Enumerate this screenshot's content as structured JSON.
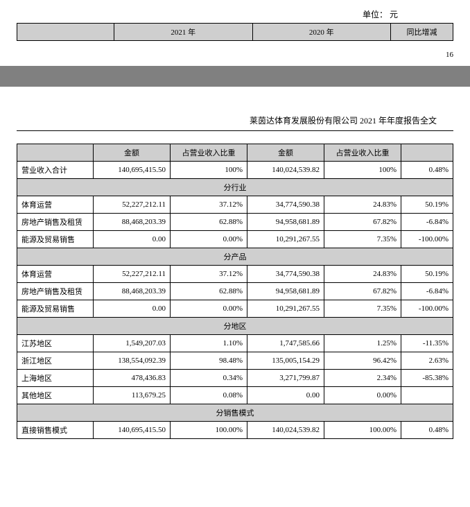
{
  "unit_label": "单位： 元",
  "top_table": {
    "headers": [
      "",
      "2021 年",
      "2020 年",
      "同比增减"
    ]
  },
  "page_number_top": "16",
  "doc_header": "莱茵达体育发展股份有限公司 2021 年年度报告全文",
  "main_table": {
    "headers": [
      "",
      "金额",
      "占营业收入比重",
      "金额",
      "占营业收入比重",
      ""
    ],
    "total_row": {
      "label": "营业收入合计",
      "amt1": "140,695,415.50",
      "pct1": "100%",
      "amt2": "140,024,539.82",
      "pct2": "100%",
      "chg": "0.48%"
    },
    "sections": [
      {
        "title": "分行业",
        "rows": [
          {
            "label": "体育运营",
            "amt1": "52,227,212.11",
            "pct1": "37.12%",
            "amt2": "34,774,590.38",
            "pct2": "24.83%",
            "chg": "50.19%"
          },
          {
            "label": "房地产销售及租赁",
            "amt1": "88,468,203.39",
            "pct1": "62.88%",
            "amt2": "94,958,681.89",
            "pct2": "67.82%",
            "chg": "-6.84%"
          },
          {
            "label": "能源及贸易销售",
            "amt1": "0.00",
            "pct1": "0.00%",
            "amt2": "10,291,267.55",
            "pct2": "7.35%",
            "chg": "-100.00%"
          }
        ]
      },
      {
        "title": "分产品",
        "rows": [
          {
            "label": "体育运营",
            "amt1": "52,227,212.11",
            "pct1": "37.12%",
            "amt2": "34,774,590.38",
            "pct2": "24.83%",
            "chg": "50.19%"
          },
          {
            "label": "房地产销售及租赁",
            "amt1": "88,468,203.39",
            "pct1": "62.88%",
            "amt2": "94,958,681.89",
            "pct2": "67.82%",
            "chg": "-6.84%"
          },
          {
            "label": "能源及贸易销售",
            "amt1": "0.00",
            "pct1": "0.00%",
            "amt2": "10,291,267.55",
            "pct2": "7.35%",
            "chg": "-100.00%"
          }
        ]
      },
      {
        "title": "分地区",
        "rows": [
          {
            "label": "江苏地区",
            "amt1": "1,549,207.03",
            "pct1": "1.10%",
            "amt2": "1,747,585.66",
            "pct2": "1.25%",
            "chg": "-11.35%"
          },
          {
            "label": "浙江地区",
            "amt1": "138,554,092.39",
            "pct1": "98.48%",
            "amt2": "135,005,154.29",
            "pct2": "96.42%",
            "chg": "2.63%"
          },
          {
            "label": "上海地区",
            "amt1": "478,436.83",
            "pct1": "0.34%",
            "amt2": "3,271,799.87",
            "pct2": "2.34%",
            "chg": "-85.38%"
          },
          {
            "label": "其他地区",
            "amt1": "113,679.25",
            "pct1": "0.08%",
            "amt2": "0.00",
            "pct2": "0.00%",
            "chg": ""
          }
        ]
      },
      {
        "title": "分销售模式",
        "rows": [
          {
            "label": "直接销售模式",
            "amt1": "140,695,415.50",
            "pct1": "100.00%",
            "amt2": "140,024,539.82",
            "pct2": "100.00%",
            "chg": "0.48%"
          }
        ]
      }
    ]
  }
}
